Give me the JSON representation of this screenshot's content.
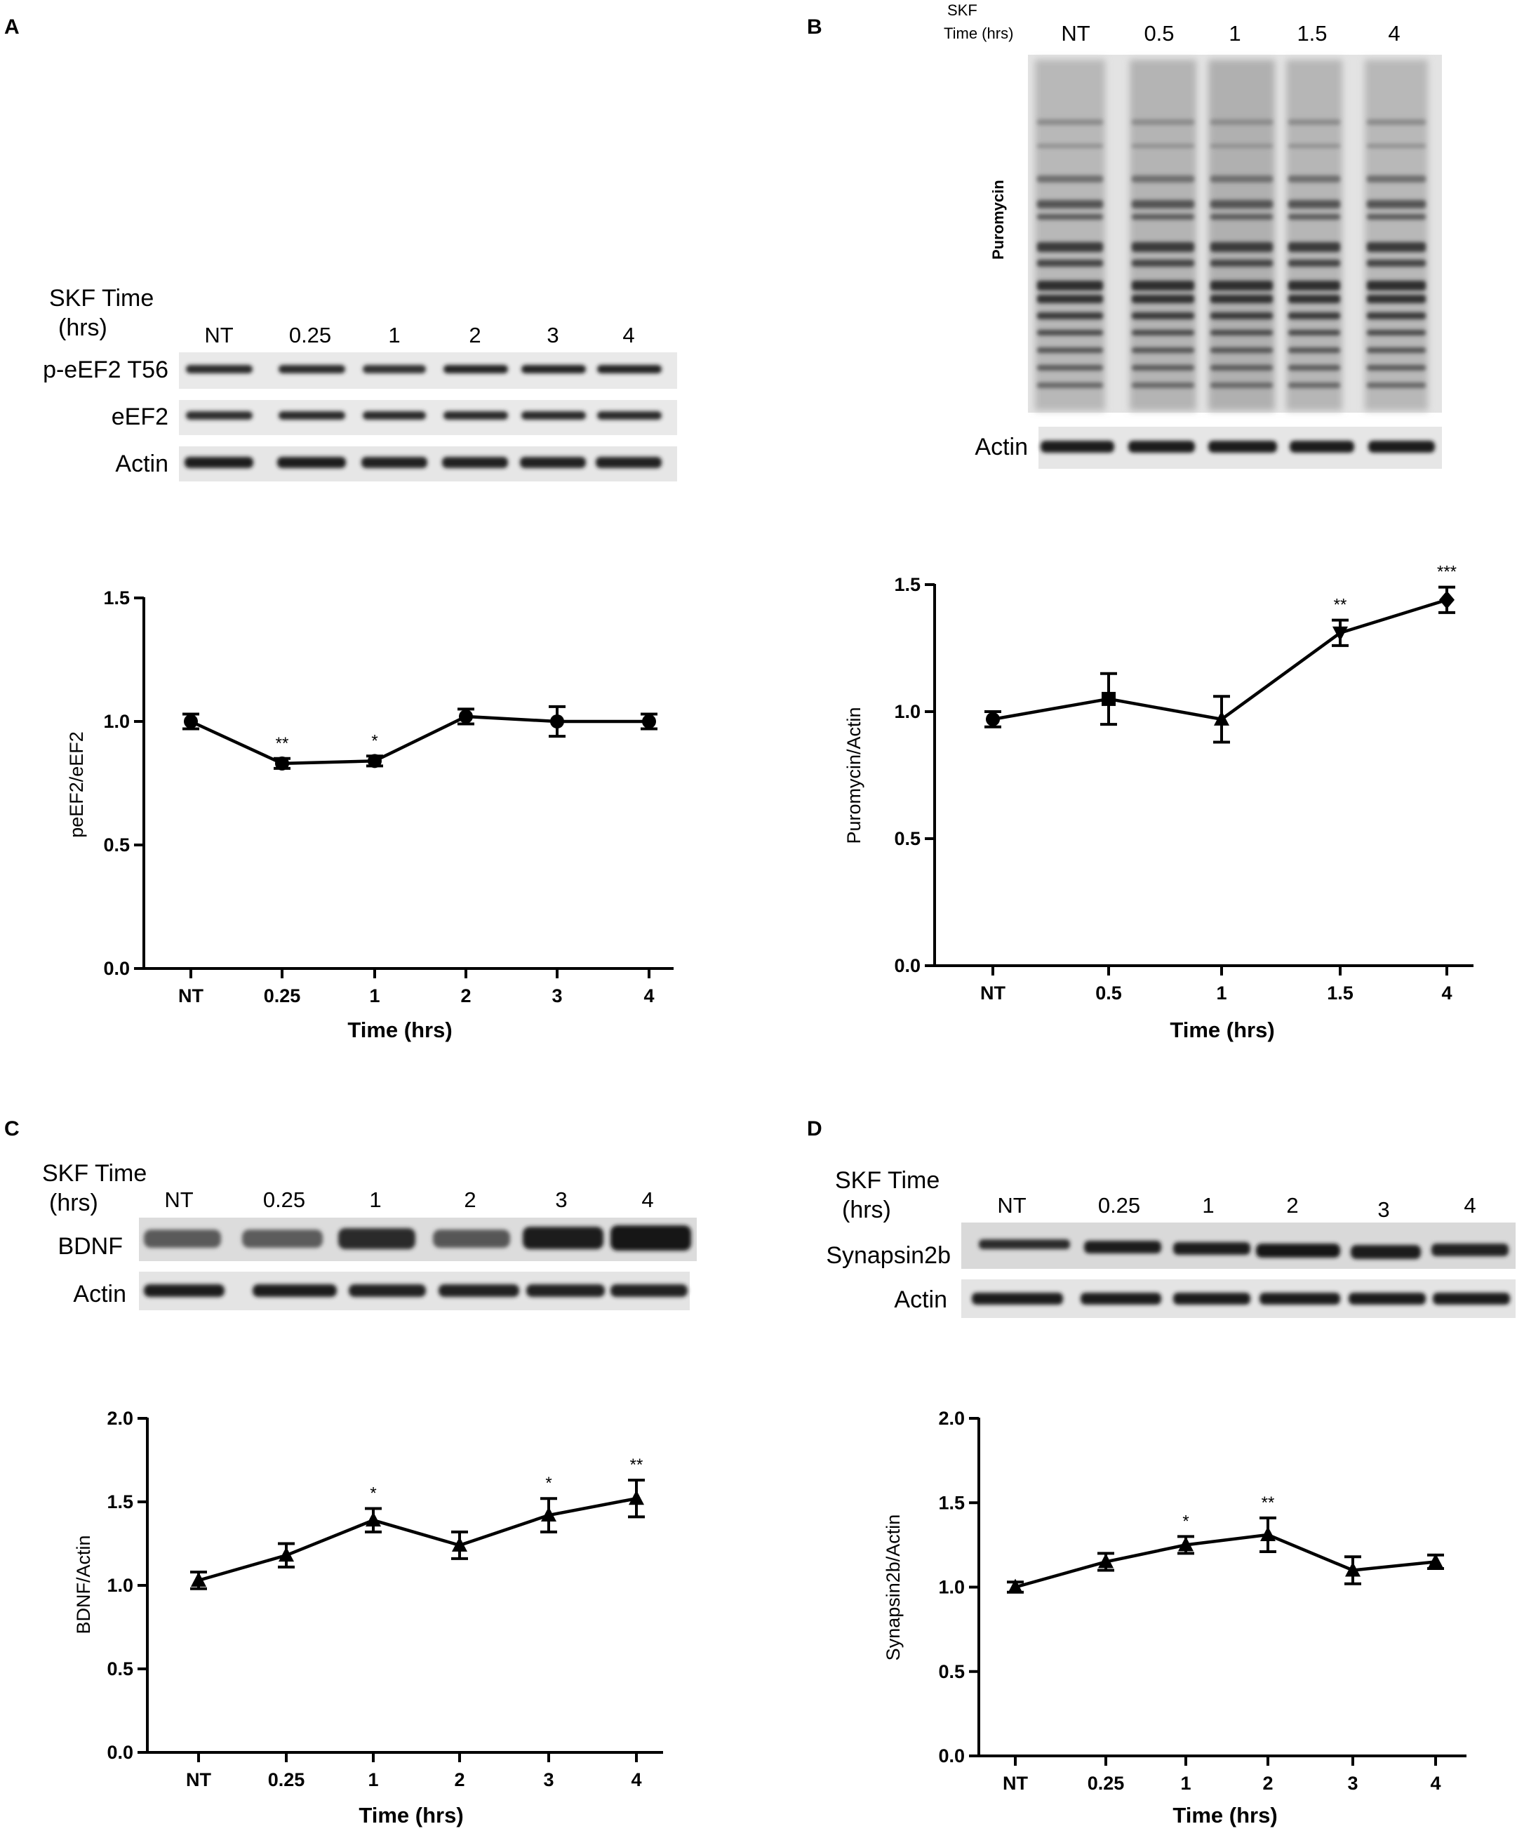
{
  "panels": [
    {
      "id": "A",
      "letter": "A",
      "blot": {
        "header_line1": "SKF Time",
        "header_line2": "(hrs)",
        "lanes": [
          "NT",
          "0.25",
          "1",
          "2",
          "3",
          "4"
        ],
        "rows": [
          "p-eEF2 T56",
          "eEF2",
          "Actin"
        ]
      }
    },
    {
      "id": "B",
      "letter": "B",
      "blot": {
        "header_line1": "SKF",
        "header_line2": "Time (hrs)",
        "lanes": [
          "NT",
          "0.5",
          "1",
          "1.5",
          "4"
        ],
        "side_label": "Puromycin",
        "rows": [
          "Actin"
        ]
      }
    },
    {
      "id": "C",
      "letter": "C",
      "blot": {
        "header_line1": "SKF Time",
        "header_line2": "(hrs)",
        "lanes": [
          "NT",
          "0.25",
          "1",
          "2",
          "3",
          "4"
        ],
        "rows": [
          "BDNF",
          "Actin"
        ]
      }
    },
    {
      "id": "D",
      "letter": "D",
      "blot": {
        "header_line1": "SKF Time",
        "header_line2": "(hrs)",
        "lanes": [
          "NT",
          "0.25",
          "1",
          "2",
          "3",
          "4"
        ],
        "rows": [
          "Synapsin2b",
          "Actin"
        ]
      }
    }
  ],
  "chart_data": [
    {
      "panel": "A",
      "type": "line",
      "categories": [
        "NT",
        "0.25",
        "1",
        "2",
        "3",
        "4"
      ],
      "values": [
        1.0,
        0.83,
        0.84,
        1.02,
        1.0,
        1.0
      ],
      "errors": [
        0.03,
        0.02,
        0.02,
        0.03,
        0.06,
        0.03
      ],
      "significance": [
        "",
        "**",
        "*",
        "",
        "",
        ""
      ],
      "marker": "circle",
      "xlabel": "Time (hrs)",
      "ylabel": "peEF2/eEF2",
      "ylim": [
        0.0,
        1.5
      ],
      "yticks": [
        "0.0",
        "0.5",
        "1.0",
        "1.5"
      ]
    },
    {
      "panel": "B",
      "type": "line",
      "categories": [
        "NT",
        "0.5",
        "1",
        "1.5",
        "4"
      ],
      "values": [
        0.97,
        1.05,
        0.97,
        1.31,
        1.44
      ],
      "errors": [
        0.03,
        0.1,
        0.09,
        0.05,
        0.05
      ],
      "significance": [
        "",
        "",
        "",
        "**",
        "***"
      ],
      "markers": [
        "circle",
        "square",
        "triangle",
        "triangle-down",
        "diamond"
      ],
      "xlabel": "Time (hrs)",
      "ylabel": "Puromycin/Actin",
      "ylim": [
        0.0,
        1.5
      ],
      "yticks": [
        "0.0",
        "0.5",
        "1.0",
        "1.5"
      ]
    },
    {
      "panel": "C",
      "type": "line",
      "categories": [
        "NT",
        "0.25",
        "1",
        "2",
        "3",
        "4"
      ],
      "values": [
        1.03,
        1.18,
        1.39,
        1.24,
        1.42,
        1.52
      ],
      "errors": [
        0.05,
        0.07,
        0.07,
        0.08,
        0.1,
        0.11
      ],
      "significance": [
        "",
        "",
        "*",
        "",
        "*",
        "**"
      ],
      "marker": "triangle",
      "xlabel": "Time (hrs)",
      "ylabel": "BDNF/Actin",
      "ylim": [
        0.0,
        2.0
      ],
      "yticks": [
        "0.0",
        "0.5",
        "1.0",
        "1.5",
        "2.0"
      ]
    },
    {
      "panel": "D",
      "type": "line",
      "categories": [
        "NT",
        "0.25",
        "1",
        "2",
        "3",
        "4"
      ],
      "values": [
        1.0,
        1.15,
        1.25,
        1.31,
        1.1,
        1.15
      ],
      "errors": [
        0.03,
        0.05,
        0.05,
        0.1,
        0.08,
        0.04
      ],
      "significance": [
        "",
        "",
        "*",
        "**",
        "",
        ""
      ],
      "marker": "triangle",
      "xlabel": "Time (hrs)",
      "ylabel": "Synapsin2b/Actin",
      "ylim": [
        0.0,
        2.0
      ],
      "yticks": [
        "0.0",
        "0.5",
        "1.0",
        "1.5",
        "2.0"
      ]
    }
  ]
}
